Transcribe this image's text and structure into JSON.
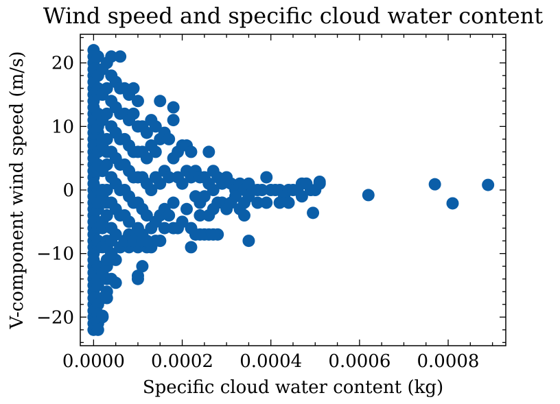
{
  "chart_data": {
    "type": "scatter",
    "title": "Wind speed and specific cloud water content",
    "xlabel": "Specific cloud water content (kg)",
    "ylabel": "V-component wind speed (m/s)",
    "xlim": [
      -3e-05,
      0.00093
    ],
    "ylim": [
      -24.5,
      24.5
    ],
    "x_ticks": [
      0.0,
      0.0002,
      0.0004,
      0.0006,
      0.0008
    ],
    "x_tick_labels": [
      "0.0000",
      "0.0002",
      "0.0004",
      "0.0006",
      "0.0008"
    ],
    "y_ticks": [
      -20,
      -10,
      0,
      10,
      20
    ],
    "y_tick_labels": [
      "−20",
      "−10",
      "0",
      "10",
      "20"
    ],
    "grid": false,
    "marker_color": "#0b5ea8",
    "series": [
      {
        "x": [
          0.0,
          0.0,
          0.0,
          0.0,
          0.0,
          0.0,
          0.0,
          0.0,
          0.0,
          0.0,
          0.0,
          0.0,
          0.0,
          0.0,
          0.0,
          0.0,
          0.0,
          0.0,
          0.0,
          0.0,
          0.0,
          0.0,
          0.0,
          0.0,
          0.0,
          0.0,
          0.0,
          0.0,
          0.0,
          0.0,
          0.0,
          0.0,
          0.0,
          0.0,
          0.0,
          0.0,
          0.0,
          0.0,
          0.0,
          0.0,
          0.0,
          0.0,
          0.0,
          0.0,
          0.0,
          1e-05,
          1e-05,
          1e-05,
          1e-05,
          1e-05,
          1e-05,
          1e-05,
          1e-05,
          1e-05,
          1e-05,
          1e-05,
          1e-05,
          1e-05,
          1e-05,
          1e-05,
          1e-05,
          1e-05,
          1e-05,
          1e-05,
          1e-05,
          1e-05,
          2e-05,
          2e-05,
          2e-05,
          2e-05,
          2e-05,
          2e-05,
          2e-05,
          2e-05,
          2e-05,
          2e-05,
          2e-05,
          2e-05,
          2e-05,
          2e-05,
          3e-05,
          3e-05,
          3e-05,
          3e-05,
          3e-05,
          3e-05,
          3e-05,
          3e-05,
          3e-05,
          3e-05,
          3e-05,
          3e-05,
          3e-05,
          4e-05,
          4e-05,
          4e-05,
          4e-05,
          4e-05,
          4e-05,
          4e-05,
          4e-05,
          4e-05,
          4e-05,
          5e-05,
          5e-05,
          5e-05,
          5e-05,
          5e-05,
          5e-05,
          5e-05,
          5e-05,
          6e-05,
          6e-05,
          6e-05,
          6e-05,
          6e-05,
          6e-05,
          6e-05,
          6e-05,
          7e-05,
          7e-05,
          7e-05,
          7e-05,
          7e-05,
          7e-05,
          7e-05,
          8e-05,
          8e-05,
          8e-05,
          8e-05,
          8e-05,
          8e-05,
          8e-05,
          9e-05,
          9e-05,
          9e-05,
          9e-05,
          9e-05,
          9e-05,
          0.0001,
          0.0001,
          0.0001,
          0.0001,
          0.0001,
          0.0001,
          0.0001,
          0.00011,
          0.00011,
          0.00011,
          0.00011,
          0.00011,
          0.00012,
          0.00012,
          0.00012,
          0.00012,
          0.00012,
          0.00013,
          0.00013,
          0.00013,
          0.00013,
          0.00014,
          0.00014,
          0.00014,
          0.00014,
          0.00015,
          0.00015,
          0.00015,
          0.00015,
          0.00016,
          0.00016,
          0.00016,
          0.00017,
          0.00017,
          0.00017,
          0.00018,
          0.00018,
          0.00018,
          0.00018,
          0.00019,
          0.00019,
          0.00019,
          0.0002,
          0.0002,
          0.0002,
          0.00021,
          0.00021,
          0.00021,
          0.00022,
          0.00022,
          0.00022,
          0.00023,
          0.00023,
          0.00023,
          0.00024,
          0.00024,
          0.00024,
          0.00025,
          0.00025,
          0.00025,
          0.00026,
          0.00026,
          0.00026,
          0.00027,
          0.00027,
          0.00027,
          0.00028,
          0.00028,
          0.00028,
          0.00029,
          0.00029,
          0.0003,
          0.0003,
          0.00031,
          0.00031,
          0.00032,
          0.00032,
          0.00033,
          0.00033,
          0.00034,
          0.00034,
          0.00035,
          0.00035,
          0.00036,
          0.00037,
          0.00038,
          0.00039,
          0.0004,
          0.00041,
          0.00042,
          0.00043,
          0.00044,
          0.00045,
          0.00046,
          0.00047,
          0.00048,
          0.00049,
          0.0005,
          0.00051,
          0.00034,
          0.00037,
          0.00039,
          0.00042,
          0.00044,
          0.00047,
          0.0001,
          0.0001,
          0.00011,
          5e-05,
          4e-05,
          3e-05,
          4e-05,
          6e-05,
          7e-05,
          0.00015,
          0.00018,
          0.00016,
          0.00023,
          0.00026,
          0.00014,
          0.0001,
          8e-05,
          0.00012,
          0.00013,
          0.00015,
          0.00022,
          0.00027,
          9e-05,
          0.00011,
          0.00024,
          0.00012,
          3e-05,
          0.00035,
          1e-05,
          2e-05,
          3e-05,
          1e-05,
          2e-05,
          4e-05,
          0.000495,
          0.00051,
          0.00062,
          0.00077,
          0.00081,
          0.00089
        ],
        "y": [
          22,
          20,
          18,
          16,
          14,
          12,
          10,
          8,
          6,
          4,
          2,
          0,
          -2,
          -4,
          -6,
          -8,
          -10,
          -12,
          -14,
          -16,
          -18,
          -20,
          -22,
          21,
          17,
          15,
          13,
          11,
          9,
          7,
          5,
          3,
          1,
          -1,
          -3,
          -5,
          -7,
          -9,
          -11,
          -13,
          -15,
          -17,
          -19,
          -21,
          19,
          21,
          18,
          15,
          12,
          9,
          6,
          3,
          0,
          -3,
          -6,
          -9,
          -12,
          -15,
          -18,
          -21,
          16,
          10,
          4,
          -2,
          -8,
          -14,
          19,
          15,
          11,
          7,
          3,
          -1,
          -5,
          -9,
          -13,
          -17,
          -20,
          8,
          0,
          -6,
          20,
          16,
          12,
          8,
          4,
          0,
          -4,
          -8,
          -12,
          -16,
          -14,
          6,
          -2,
          18,
          14,
          10,
          6,
          2,
          -2,
          -6,
          -10,
          -14,
          21,
          17,
          13,
          9,
          5,
          1,
          -3,
          -7,
          -11,
          21,
          16,
          12,
          8,
          4,
          0,
          -4,
          -9,
          16,
          12,
          8,
          4,
          0,
          -4,
          -8,
          15,
          11,
          7,
          3,
          -1,
          -5,
          -9,
          16,
          12,
          6,
          2,
          -2,
          -8,
          14,
          10,
          6,
          2,
          -2,
          -6,
          -9,
          10,
          6,
          2,
          -3,
          -7,
          9,
          5,
          1,
          -4,
          -8,
          11,
          7,
          0,
          -6,
          10,
          6,
          2,
          -5,
          14,
          8,
          1,
          -4,
          9,
          3,
          -3,
          8,
          2,
          -4,
          13,
          11,
          5,
          -2,
          6,
          2,
          -6,
          7,
          1,
          -5,
          7,
          3,
          -3,
          6,
          2,
          -6,
          3,
          -1,
          -7,
          2,
          -2,
          -4,
          2,
          -1,
          -7,
          6,
          1,
          -4,
          3,
          0,
          -3,
          2,
          -2,
          -7,
          1,
          -2,
          2,
          -3,
          1,
          -2,
          0,
          -1,
          1,
          -3,
          0,
          -2,
          1,
          -1,
          0,
          0,
          0,
          2,
          0,
          0,
          0,
          -1,
          0,
          0,
          0,
          1,
          1,
          0,
          0,
          1,
          -4,
          -2,
          -2,
          -2,
          -2,
          -1,
          -13.5,
          -14,
          -12,
          -14.6,
          -10,
          -9,
          -8,
          -9,
          -8,
          -8,
          -6,
          -6,
          -7,
          -7,
          -8,
          -7,
          -7,
          -9,
          -9,
          -8,
          -9,
          -7,
          -8,
          -8,
          -7,
          -8,
          -11,
          -8,
          -19.5,
          -20,
          -17,
          -22,
          -19.8,
          -10,
          -3.6,
          1.3,
          -0.8,
          0.9,
          -2.1,
          0.8
        ]
      }
    ]
  }
}
